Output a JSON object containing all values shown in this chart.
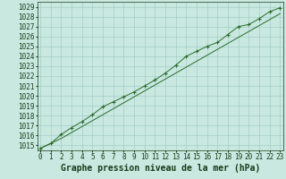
{
  "title": "Graphe pression niveau de la mer (hPa)",
  "x_values": [
    0,
    1,
    2,
    3,
    4,
    5,
    6,
    7,
    8,
    9,
    10,
    11,
    12,
    13,
    14,
    15,
    16,
    17,
    18,
    19,
    20,
    21,
    22,
    23
  ],
  "line_data_y": [
    1014.7,
    1015.2,
    1016.1,
    1016.8,
    1017.4,
    1018.1,
    1018.9,
    1019.4,
    1019.9,
    1020.4,
    1021.0,
    1021.6,
    1022.3,
    1023.1,
    1024.0,
    1024.5,
    1025.0,
    1025.4,
    1026.2,
    1027.0,
    1027.2,
    1027.8,
    1028.5,
    1028.9
  ],
  "trend_y": [
    1014.7,
    1015.2,
    1015.7,
    1016.3,
    1016.9,
    1017.5,
    1018.1,
    1018.7,
    1019.3,
    1019.9,
    1020.5,
    1021.1,
    1021.7,
    1022.3,
    1022.9,
    1023.5,
    1024.1,
    1024.7,
    1025.3,
    1025.9,
    1026.5,
    1027.1,
    1027.7,
    1028.3
  ],
  "ylim": [
    1014.5,
    1029.5
  ],
  "yticks": [
    1015,
    1016,
    1017,
    1018,
    1019,
    1020,
    1021,
    1022,
    1023,
    1024,
    1025,
    1026,
    1027,
    1028,
    1029
  ],
  "line_color": "#2d6a2d",
  "bg_color": "#c8e8e0",
  "grid_color": "#9cc8c0",
  "text_color": "#1a3a1a",
  "font_size_title": 7.0,
  "font_size_ticks": 5.5
}
